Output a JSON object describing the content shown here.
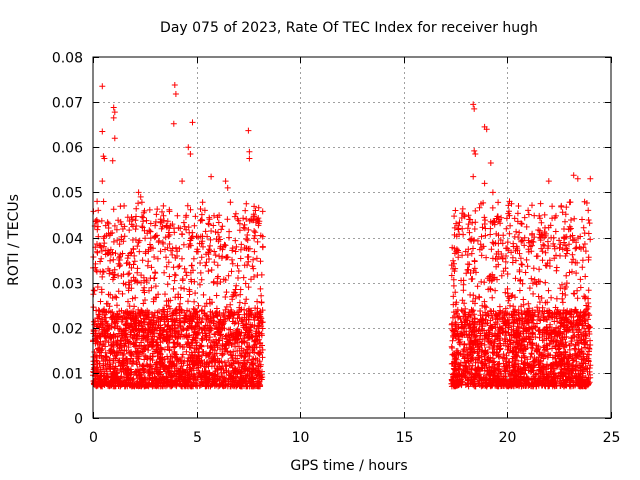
{
  "chart_data": {
    "type": "scatter",
    "title": "Day 075 of 2023, Rate Of TEC Index for receiver hugh",
    "xlabel": "GPS time / hours",
    "ylabel": "ROTI / TECUs",
    "xlim": [
      0,
      25
    ],
    "ylim": [
      0,
      0.08
    ],
    "x_ticks": [
      0,
      5,
      10,
      15,
      20,
      25
    ],
    "x_tick_labels": [
      "0",
      "5",
      "10",
      "15",
      "20",
      "25"
    ],
    "y_ticks": [
      0,
      0.01,
      0.02,
      0.03,
      0.04,
      0.05,
      0.06,
      0.07,
      0.08
    ],
    "y_tick_labels": [
      "0",
      "0.01",
      "0.02",
      "0.03",
      "0.04",
      "0.05",
      "0.06",
      "0.07",
      "0.08"
    ],
    "grid": true,
    "marker": "+",
    "color": "#ff0000",
    "series": [
      {
        "name": "ROTI",
        "segments": [
          {
            "x_range": [
              0,
              8.2
            ],
            "typical_range": [
              0.005,
              0.03
            ],
            "max": 0.074
          },
          {
            "x_range": [
              17.3,
              24
            ],
            "typical_range": [
              0.005,
              0.03
            ],
            "max": 0.07
          }
        ],
        "points": [
          [
            0.45,
            0.0735
          ],
          [
            3.95,
            0.0738
          ],
          [
            4.0,
            0.0718
          ],
          [
            18.35,
            0.0695
          ],
          [
            18.4,
            0.0685
          ],
          [
            1.0,
            0.0688
          ],
          [
            1.05,
            0.0678
          ],
          [
            1.0,
            0.0665
          ],
          [
            1.05,
            0.062
          ],
          [
            0.95,
            0.057
          ],
          [
            0.45,
            0.0635
          ],
          [
            0.5,
            0.058
          ],
          [
            0.55,
            0.0575
          ],
          [
            3.9,
            0.0652
          ],
          [
            4.8,
            0.0655
          ],
          [
            18.9,
            0.0645
          ],
          [
            19.0,
            0.064
          ],
          [
            7.5,
            0.0637
          ],
          [
            7.55,
            0.059
          ],
          [
            7.55,
            0.0575
          ],
          [
            18.4,
            0.0592
          ],
          [
            18.45,
            0.0585
          ],
          [
            18.35,
            0.0535
          ],
          [
            19.2,
            0.0565
          ],
          [
            18.9,
            0.052
          ],
          [
            4.6,
            0.06
          ],
          [
            4.7,
            0.0585
          ],
          [
            0.45,
            0.0525
          ],
          [
            4.3,
            0.0525
          ],
          [
            5.7,
            0.0535
          ],
          [
            6.4,
            0.0525
          ],
          [
            6.5,
            0.051
          ],
          [
            23.2,
            0.0538
          ],
          [
            23.4,
            0.053
          ],
          [
            24.0,
            0.053
          ],
          [
            22.0,
            0.0525
          ],
          [
            20.1,
            0.048
          ],
          [
            20.2,
            0.0475
          ],
          [
            19.3,
            0.05
          ],
          [
            0.2,
            0.048
          ],
          [
            0.25,
            0.046
          ],
          [
            2.2,
            0.05
          ],
          [
            2.3,
            0.049
          ],
          [
            1.5,
            0.047
          ],
          [
            3.4,
            0.047
          ],
          [
            5.4,
            0.046
          ],
          [
            7.4,
            0.0475
          ],
          [
            21.0,
            0.046
          ],
          [
            22.6,
            0.047
          ],
          [
            23.9,
            0.046
          ],
          [
            17.9,
            0.045
          ],
          [
            18.2,
            0.044
          ],
          [
            19.6,
            0.044
          ],
          [
            21.8,
            0.045
          ],
          [
            20.7,
            0.043
          ]
        ]
      }
    ]
  }
}
